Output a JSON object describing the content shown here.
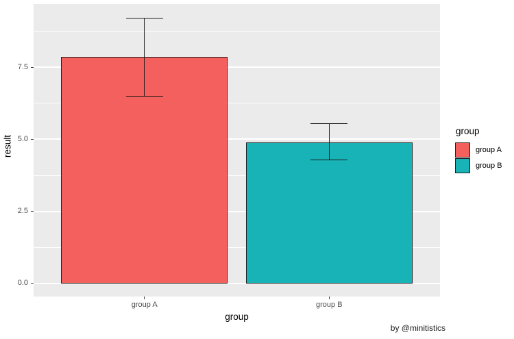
{
  "chart_data": {
    "type": "bar",
    "title": "",
    "xlabel": "group",
    "ylabel": "result",
    "caption": "by @minitistics",
    "categories": [
      "group A",
      "group B"
    ],
    "values": [
      7.85,
      4.9
    ],
    "error_low": [
      6.5,
      4.28
    ],
    "error_high": [
      9.2,
      5.55
    ],
    "ylim": [
      -0.455,
      9.69
    ],
    "yticks": [
      0,
      2.5,
      5,
      7.5
    ],
    "ytick_labels": [
      "0.0",
      "2.5",
      "5.0",
      "7.5"
    ],
    "minor_gridlines": [
      1.25,
      3.75,
      6.25,
      8.75
    ],
    "bar_colors": [
      "#F4605D",
      "#17B3B6"
    ],
    "bar_border_color": "#1A1A1A",
    "panel_bg": "#EBEBEB",
    "grid_color": "#FFFFFF",
    "grid": true,
    "legend": {
      "title": "group",
      "position": "right",
      "entries": [
        {
          "label": "group A",
          "color": "#F4605D"
        },
        {
          "label": "group B",
          "color": "#17B3B6"
        }
      ]
    }
  }
}
